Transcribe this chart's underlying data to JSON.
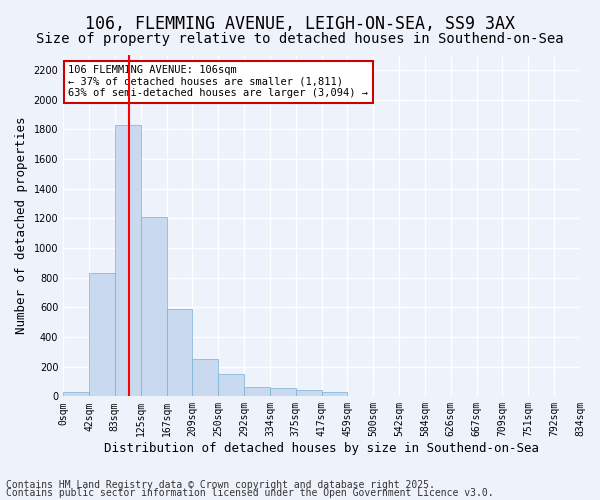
{
  "title_line1": "106, FLEMMING AVENUE, LEIGH-ON-SEA, SS9 3AX",
  "title_line2": "Size of property relative to detached houses in Southend-on-Sea",
  "xlabel": "Distribution of detached houses by size in Southend-on-Sea",
  "ylabel": "Number of detached properties",
  "bin_labels": [
    "0sqm",
    "42sqm",
    "83sqm",
    "125sqm",
    "167sqm",
    "209sqm",
    "250sqm",
    "292sqm",
    "334sqm",
    "375sqm",
    "417sqm",
    "459sqm",
    "500sqm",
    "542sqm",
    "584sqm",
    "626sqm",
    "667sqm",
    "709sqm",
    "751sqm",
    "792sqm",
    "834sqm"
  ],
  "bar_heights": [
    30,
    830,
    1830,
    1210,
    590,
    250,
    150,
    60,
    55,
    45,
    30,
    0,
    5,
    0,
    0,
    0,
    0,
    0,
    0,
    0
  ],
  "bar_color": "#c9d9f0",
  "bar_edge_color": "#7bafd4",
  "property_size_sqm": 106,
  "red_line_bin": 1.52,
  "annotation_title": "106 FLEMMING AVENUE: 106sqm",
  "annotation_line2": "← 37% of detached houses are smaller (1,811)",
  "annotation_line3": "63% of semi-detached houses are larger (3,094) →",
  "annotation_box_color": "#ffffff",
  "annotation_box_edge": "#cc0000",
  "ylim": [
    0,
    2300
  ],
  "yticks": [
    0,
    200,
    400,
    600,
    800,
    1000,
    1200,
    1400,
    1600,
    1800,
    2000,
    2200
  ],
  "footer_line1": "Contains HM Land Registry data © Crown copyright and database right 2025.",
  "footer_line2": "Contains public sector information licensed under the Open Government Licence v3.0.",
  "background_color": "#eef2fb",
  "plot_background": "#eef2fb",
  "grid_color": "#ffffff",
  "title_fontsize": 12,
  "subtitle_fontsize": 10,
  "axis_label_fontsize": 9,
  "tick_fontsize": 7,
  "footer_fontsize": 7
}
